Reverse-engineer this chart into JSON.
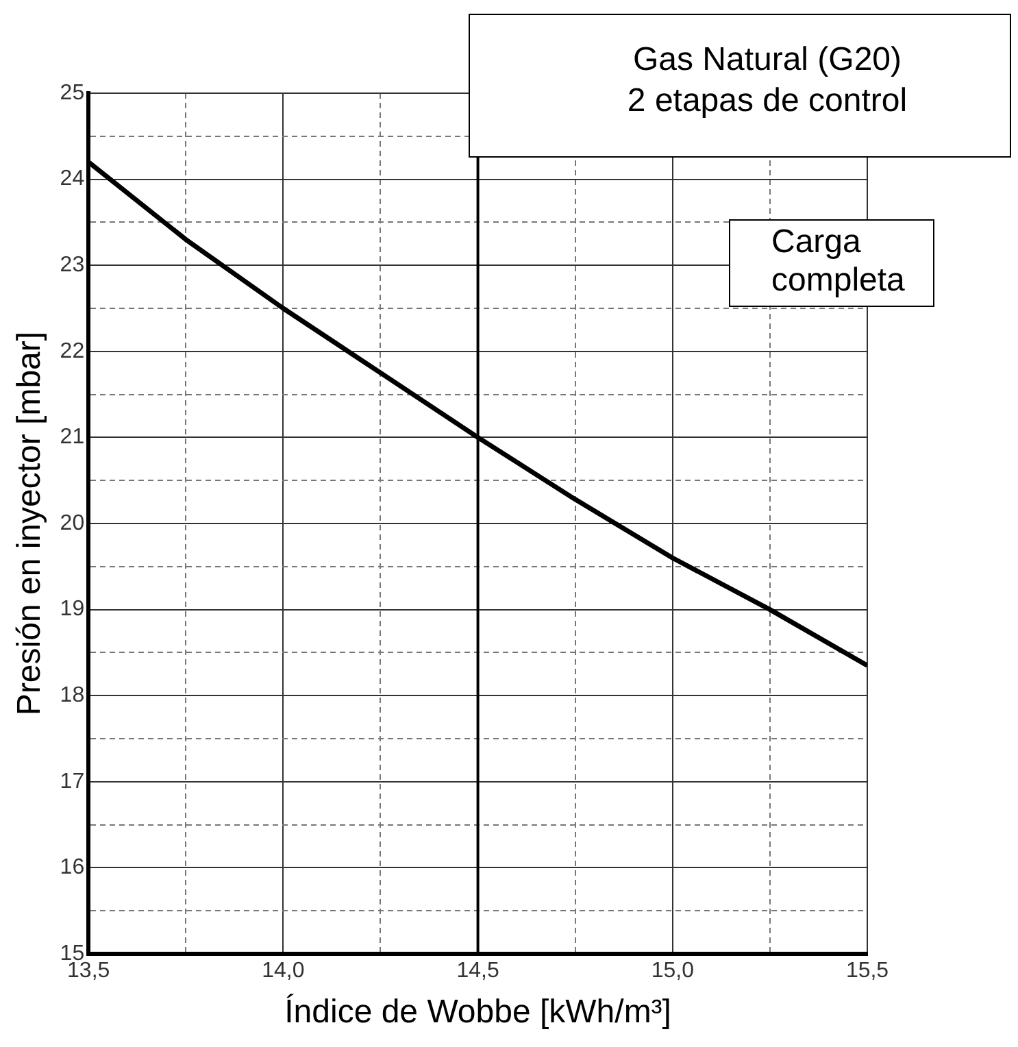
{
  "chart_data": {
    "type": "line",
    "title": "Gas Natural (G20)",
    "subtitle": "2 etapas de control",
    "xlabel": "Índice de Wobbe [kWh/m³]",
    "ylabel": "Presión en inyector [mbar]",
    "annotations": [
      "Carga completa"
    ],
    "x": [
      13.5,
      13.75,
      14.0,
      14.25,
      14.5,
      14.75,
      15.0,
      15.25,
      15.5
    ],
    "series": [
      {
        "color": "#000000",
        "values": [
          24.2,
          23.3,
          22.5,
          21.75,
          21.0,
          20.28,
          19.6,
          19.0,
          18.35
        ]
      }
    ],
    "xlim": [
      13.5,
      15.5
    ],
    "xticks": [
      {
        "value": 13.5,
        "label": "13,5"
      },
      {
        "value": 13.75,
        "label": null
      },
      {
        "value": 14.0,
        "label": "14,0"
      },
      {
        "value": 14.25,
        "label": null
      },
      {
        "value": 14.5,
        "label": "14,5"
      },
      {
        "value": 14.75,
        "label": null
      },
      {
        "value": 15.0,
        "label": "15,0"
      },
      {
        "value": 15.25,
        "label": null
      },
      {
        "value": 15.5,
        "label": "15,5"
      }
    ],
    "ylim": [
      15,
      25
    ],
    "yticks": [
      15,
      {
        "value": 15.5,
        "label": null
      },
      16,
      {
        "value": 16.5,
        "label": null
      },
      17,
      {
        "value": 17.5,
        "label": null
      },
      18,
      {
        "value": 18.5,
        "label": null
      },
      19,
      {
        "value": 19.5,
        "label": null
      },
      20,
      {
        "value": 20.5,
        "label": null
      },
      21,
      {
        "value": 21.5,
        "label": null
      },
      22,
      {
        "value": 22.5,
        "label": null
      },
      23,
      {
        "value": 23.5,
        "label": null
      },
      24,
      {
        "value": 24.5,
        "label": null
      },
      25
    ],
    "ref_lines": [
      {
        "axis": "x",
        "value": 14.5,
        "color": "#000000"
      }
    ],
    "grid": true,
    "marker": "none",
    "line_style": "solid"
  }
}
